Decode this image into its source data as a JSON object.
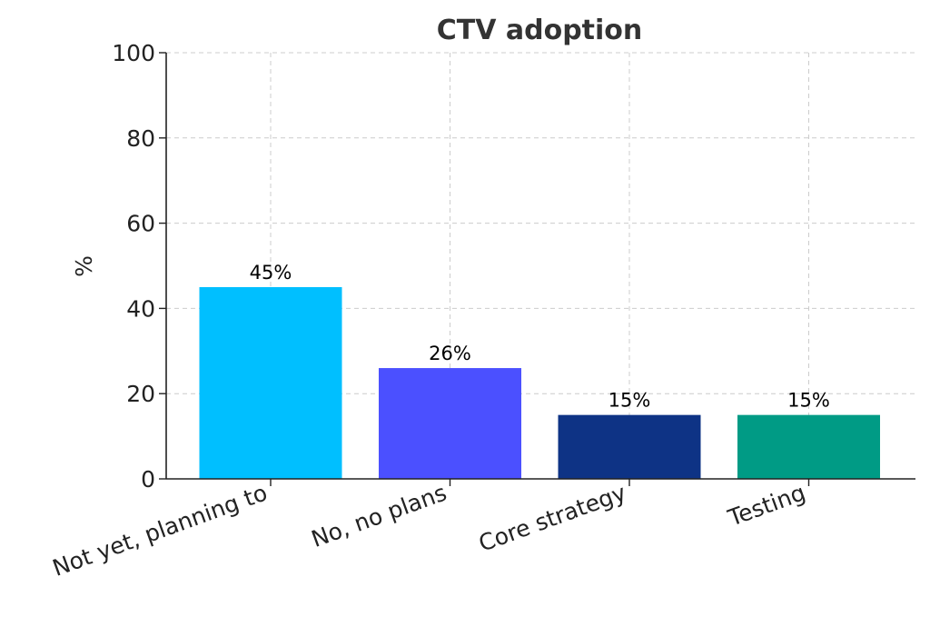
{
  "chart_data": {
    "type": "bar",
    "title": "CTV adoption",
    "xlabel": "",
    "ylabel": "%",
    "ylim": [
      0,
      100
    ],
    "yticks": [
      0,
      20,
      40,
      60,
      80,
      100
    ],
    "grid": true,
    "categories": [
      "Not yet, planning to",
      "No, no plans",
      "Core strategy",
      "Testing"
    ],
    "values": [
      45,
      26,
      15,
      15
    ],
    "data_labels": [
      "45%",
      "26%",
      "15%",
      "15%"
    ],
    "colors": [
      "#00BFFF",
      "#4B50FF",
      "#0E3385",
      "#009B85"
    ]
  }
}
